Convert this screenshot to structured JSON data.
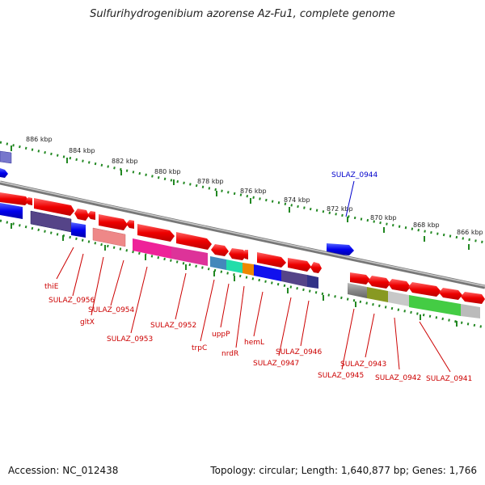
{
  "title": "Sulfurihydrogenibium azorense Az-Fu1, complete genome",
  "footer": {
    "accession": "Accession: NC_012438",
    "summary": "Topology: circular; Length: 1,640,877 bp; Genes: 1,766"
  },
  "scale_labels": [
    "886 kbp",
    "884 kbp",
    "882 kbp",
    "880 kbp",
    "878 kbp",
    "876 kbp",
    "874 kbp",
    "872 kbp",
    "870 kbp",
    "868 kbp",
    "866 kbp"
  ],
  "gene_labels": {
    "sulaz0944": "SULAZ_0944",
    "thiE": "thiE",
    "sulaz0956": "SULAZ_0956",
    "sulaz0954": "SULAZ_0954",
    "gltX": "gltX",
    "sulaz0953": "SULAZ_0953",
    "sulaz0952": "SULAZ_0952",
    "trpC": "trpC",
    "uppP": "uppP",
    "nrdR": "nrdR",
    "hemL": "hemL",
    "sulaz0947": "SULAZ_0947",
    "sulaz0946": "SULAZ_0946",
    "sulaz0945": "SULAZ_0945",
    "sulaz0943": "SULAZ_0943",
    "sulaz0942": "SULAZ_0942",
    "sulaz0941": "SULAZ_0941"
  },
  "colors": {
    "cds_forward": "#ee1111",
    "cds_reverse": "#1111ee",
    "backbone": "#888888",
    "scale": "#228822",
    "label": "#cc0000"
  }
}
